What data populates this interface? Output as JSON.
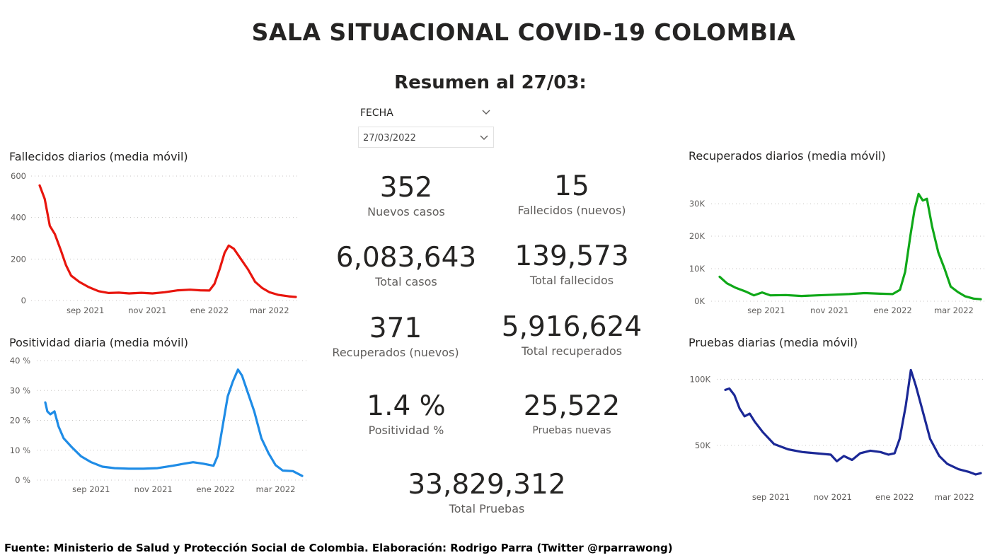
{
  "title": "SALA SITUACIONAL COVID-19 COLOMBIA",
  "subtitle": "Resumen al 27/03:",
  "slicer": {
    "label": "FECHA",
    "value": "27/03/2022",
    "icon": "chevron-down-icon"
  },
  "kpis": [
    {
      "value": "352",
      "label": "Nuevos casos"
    },
    {
      "value": "15",
      "label": "Fallecidos (nuevos)"
    },
    {
      "value": "6,083,643",
      "label": "Total casos"
    },
    {
      "value": "139,573",
      "label": "Total fallecidos"
    },
    {
      "value": "371",
      "label": "Recuperados (nuevos)"
    },
    {
      "value": "5,916,624",
      "label": "Total recuperados"
    },
    {
      "value": "1.4 %",
      "label": "Positividad %"
    },
    {
      "value": "25,522",
      "label": "Pruebas nuevas"
    },
    {
      "value": "33,829,312",
      "label": "Total Pruebas"
    }
  ],
  "footer": "Fuente: Ministerio de Salud y Protección Social de Colombia. Elaboración: Rodrigo Parra (Twitter @rparrawong)",
  "chart_data": [
    {
      "id": "fallecidos",
      "type": "line",
      "title": "Fallecidos diarios (media móvil)",
      "color": "#e8150d",
      "x_start": "2021-07-18",
      "x_end": "2022-03-27",
      "xticks": [
        {
          "date": "2021-09-01",
          "label": "sep 2021"
        },
        {
          "date": "2021-11-01",
          "label": "nov 2021"
        },
        {
          "date": "2022-01-01",
          "label": "ene 2022"
        },
        {
          "date": "2022-03-01",
          "label": "mar 2022"
        }
      ],
      "yticks": [
        {
          "value": 0,
          "label": "0"
        },
        {
          "value": 200,
          "label": "200"
        },
        {
          "value": 400,
          "label": "400"
        },
        {
          "value": 600,
          "label": "600"
        }
      ],
      "ylim": [
        0,
        600
      ],
      "grid": true,
      "points": [
        [
          "2021-07-18",
          555
        ],
        [
          "2021-07-23",
          490
        ],
        [
          "2021-07-28",
          360
        ],
        [
          "2021-08-02",
          320
        ],
        [
          "2021-08-08",
          240
        ],
        [
          "2021-08-13",
          170
        ],
        [
          "2021-08-18",
          120
        ],
        [
          "2021-08-26",
          90
        ],
        [
          "2021-09-04",
          65
        ],
        [
          "2021-09-14",
          45
        ],
        [
          "2021-09-24",
          36
        ],
        [
          "2021-10-04",
          38
        ],
        [
          "2021-10-14",
          34
        ],
        [
          "2021-10-26",
          37
        ],
        [
          "2021-11-06",
          34
        ],
        [
          "2021-11-18",
          40
        ],
        [
          "2021-12-01",
          49
        ],
        [
          "2021-12-13",
          52
        ],
        [
          "2021-12-23",
          49
        ],
        [
          "2022-01-01",
          48
        ],
        [
          "2022-01-06",
          80
        ],
        [
          "2022-01-11",
          150
        ],
        [
          "2022-01-16",
          230
        ],
        [
          "2022-01-20",
          265
        ],
        [
          "2022-01-25",
          250
        ],
        [
          "2022-02-01",
          200
        ],
        [
          "2022-02-08",
          150
        ],
        [
          "2022-02-15",
          90
        ],
        [
          "2022-02-22",
          60
        ],
        [
          "2022-03-01",
          40
        ],
        [
          "2022-03-10",
          27
        ],
        [
          "2022-03-20",
          20
        ],
        [
          "2022-03-27",
          17
        ]
      ]
    },
    {
      "id": "positividad",
      "type": "line",
      "title": "Positividad diaria (media móvil)",
      "color": "#1f8ce6",
      "x_start": "2021-07-18",
      "x_end": "2022-03-27",
      "xticks": [
        {
          "date": "2021-09-01",
          "label": "sep 2021"
        },
        {
          "date": "2021-11-01",
          "label": "nov 2021"
        },
        {
          "date": "2022-01-01",
          "label": "ene 2022"
        },
        {
          "date": "2022-03-01",
          "label": "mar 2022"
        }
      ],
      "yticks": [
        {
          "value": 0,
          "label": "0 %"
        },
        {
          "value": 10,
          "label": "10 %"
        },
        {
          "value": 20,
          "label": "20 %"
        },
        {
          "value": 30,
          "label": "30 %"
        },
        {
          "value": 40,
          "label": "40 %"
        }
      ],
      "ylim": [
        0,
        40
      ],
      "grid": true,
      "points": [
        [
          "2021-07-18",
          26
        ],
        [
          "2021-07-20",
          23
        ],
        [
          "2021-07-23",
          22
        ],
        [
          "2021-07-27",
          23
        ],
        [
          "2021-07-31",
          18
        ],
        [
          "2021-08-05",
          14
        ],
        [
          "2021-08-13",
          11
        ],
        [
          "2021-08-22",
          8
        ],
        [
          "2021-09-01",
          6
        ],
        [
          "2021-09-12",
          4.5
        ],
        [
          "2021-09-24",
          4
        ],
        [
          "2021-10-08",
          3.8
        ],
        [
          "2021-10-22",
          3.8
        ],
        [
          "2021-11-05",
          4
        ],
        [
          "2021-11-20",
          4.8
        ],
        [
          "2021-12-01",
          5.5
        ],
        [
          "2021-12-10",
          6
        ],
        [
          "2021-12-20",
          5.5
        ],
        [
          "2021-12-30",
          4.8
        ],
        [
          "2022-01-03",
          8
        ],
        [
          "2022-01-08",
          18
        ],
        [
          "2022-01-13",
          28
        ],
        [
          "2022-01-18",
          33
        ],
        [
          "2022-01-23",
          37
        ],
        [
          "2022-01-27",
          35
        ],
        [
          "2022-02-01",
          30
        ],
        [
          "2022-02-08",
          23
        ],
        [
          "2022-02-15",
          14
        ],
        [
          "2022-02-22",
          9
        ],
        [
          "2022-03-01",
          5
        ],
        [
          "2022-03-08",
          3.2
        ],
        [
          "2022-03-18",
          3
        ],
        [
          "2022-03-27",
          1.4
        ]
      ]
    },
    {
      "id": "recuperados",
      "type": "line",
      "title": "Recuperados diarios (media móvil)",
      "color": "#0fa818",
      "x_start": "2021-07-18",
      "x_end": "2022-03-27",
      "xticks": [
        {
          "date": "2021-09-01",
          "label": "sep 2021"
        },
        {
          "date": "2021-11-01",
          "label": "nov 2021"
        },
        {
          "date": "2022-01-01",
          "label": "ene 2022"
        },
        {
          "date": "2022-03-01",
          "label": "mar 2022"
        }
      ],
      "yticks": [
        {
          "value": 0,
          "label": "0K"
        },
        {
          "value": 10000,
          "label": "10K"
        },
        {
          "value": 20000,
          "label": "20K"
        },
        {
          "value": 30000,
          "label": "30K"
        }
      ],
      "ylim": [
        0,
        33500
      ],
      "grid": true,
      "points": [
        [
          "2021-07-18",
          7500
        ],
        [
          "2021-07-25",
          5500
        ],
        [
          "2021-08-02",
          4200
        ],
        [
          "2021-08-12",
          3000
        ],
        [
          "2021-08-20",
          1800
        ],
        [
          "2021-08-28",
          2700
        ],
        [
          "2021-09-05",
          1800
        ],
        [
          "2021-09-20",
          1900
        ],
        [
          "2021-10-05",
          1600
        ],
        [
          "2021-10-20",
          1800
        ],
        [
          "2021-11-05",
          2000
        ],
        [
          "2021-11-20",
          2200
        ],
        [
          "2021-12-05",
          2500
        ],
        [
          "2021-12-20",
          2300
        ],
        [
          "2022-01-01",
          2200
        ],
        [
          "2022-01-08",
          3500
        ],
        [
          "2022-01-13",
          9000
        ],
        [
          "2022-01-18",
          20000
        ],
        [
          "2022-01-22",
          28000
        ],
        [
          "2022-01-26",
          33000
        ],
        [
          "2022-01-30",
          31000
        ],
        [
          "2022-02-03",
          31500
        ],
        [
          "2022-02-08",
          23000
        ],
        [
          "2022-02-14",
          15000
        ],
        [
          "2022-02-20",
          10000
        ],
        [
          "2022-02-26",
          4500
        ],
        [
          "2022-03-05",
          2800
        ],
        [
          "2022-03-12",
          1500
        ],
        [
          "2022-03-20",
          800
        ],
        [
          "2022-03-27",
          600
        ]
      ]
    },
    {
      "id": "pruebas",
      "type": "line",
      "title": "Pruebas diarias (media móvil)",
      "color": "#1b2896",
      "x_start": "2021-07-18",
      "x_end": "2022-03-27",
      "xticks": [
        {
          "date": "2021-09-01",
          "label": "sep 2021"
        },
        {
          "date": "2021-11-01",
          "label": "nov 2021"
        },
        {
          "date": "2022-01-01",
          "label": "ene 2022"
        },
        {
          "date": "2022-03-01",
          "label": "mar 2022"
        }
      ],
      "yticks": [
        {
          "value": 50000,
          "label": "50K"
        },
        {
          "value": 100000,
          "label": "100K"
        }
      ],
      "ylim": [
        20000,
        112000
      ],
      "grid": true,
      "points": [
        [
          "2021-07-18",
          92000
        ],
        [
          "2021-07-22",
          93000
        ],
        [
          "2021-07-27",
          88000
        ],
        [
          "2021-08-01",
          78000
        ],
        [
          "2021-08-06",
          72000
        ],
        [
          "2021-08-11",
          74000
        ],
        [
          "2021-08-16",
          68000
        ],
        [
          "2021-08-24",
          60000
        ],
        [
          "2021-09-04",
          51000
        ],
        [
          "2021-09-18",
          47000
        ],
        [
          "2021-10-02",
          45000
        ],
        [
          "2021-10-16",
          44000
        ],
        [
          "2021-10-30",
          43000
        ],
        [
          "2021-11-05",
          38000
        ],
        [
          "2021-11-12",
          42000
        ],
        [
          "2021-11-20",
          39000
        ],
        [
          "2021-11-28",
          44000
        ],
        [
          "2021-12-08",
          46000
        ],
        [
          "2021-12-18",
          45000
        ],
        [
          "2021-12-26",
          43000
        ],
        [
          "2022-01-01",
          44000
        ],
        [
          "2022-01-06",
          55000
        ],
        [
          "2022-01-12",
          80000
        ],
        [
          "2022-01-17",
          107000
        ],
        [
          "2022-01-22",
          95000
        ],
        [
          "2022-01-28",
          78000
        ],
        [
          "2022-02-05",
          55000
        ],
        [
          "2022-02-14",
          42000
        ],
        [
          "2022-02-22",
          36000
        ],
        [
          "2022-03-05",
          32000
        ],
        [
          "2022-03-15",
          30000
        ],
        [
          "2022-03-22",
          28000
        ],
        [
          "2022-03-27",
          29000
        ]
      ]
    }
  ]
}
